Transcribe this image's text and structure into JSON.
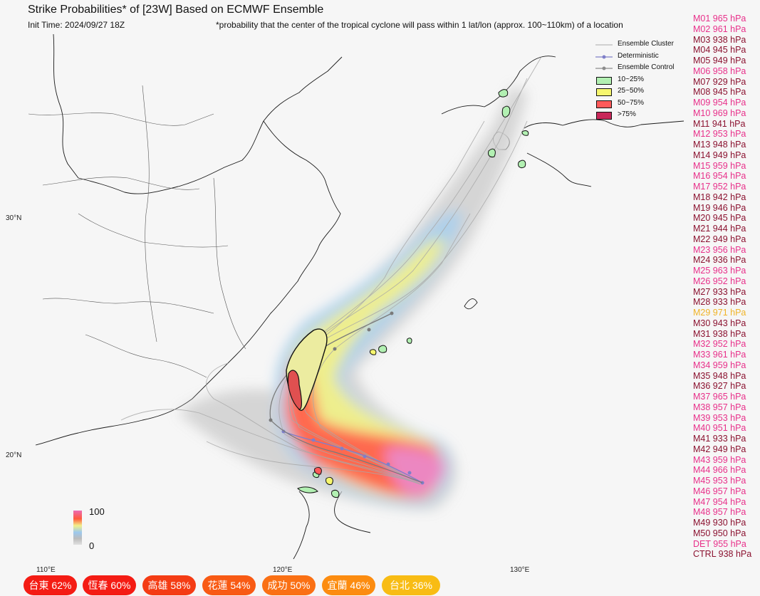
{
  "header": {
    "title": "Strike Probabilities* of [23W] Based on ECMWF Ensemble",
    "init_time": "Init Time: 2024/09/27 18Z",
    "footnote": "*probability that the center of the tropical cyclone will pass within 1 lat/lon (approx. 100~110km) of a location"
  },
  "axes": {
    "lat_labels": [
      "30°N",
      "20°N"
    ],
    "lon_labels": [
      "110°E",
      "120°E",
      "130°E"
    ]
  },
  "legend": {
    "items": [
      {
        "label": "Ensemble Cluster",
        "kind": "line",
        "color": "#b9b9b9"
      },
      {
        "label": "Deterministic",
        "kind": "dotline",
        "color": "#7f7fc8"
      },
      {
        "label": "Ensemble Control",
        "kind": "dotline",
        "color": "#8c8c8c"
      },
      {
        "label": "10~25%",
        "kind": "box",
        "color": "#b2f0b2"
      },
      {
        "label": "25~50%",
        "kind": "box",
        "color": "#f6f66e"
      },
      {
        "label": "50~75%",
        "kind": "box",
        "color": "#ff5a5a"
      },
      {
        "label": ">75%",
        "kind": "box",
        "color": "#c8285a"
      }
    ]
  },
  "colorbar": {
    "max": "100",
    "min": "0"
  },
  "members": [
    {
      "name": "M01 965 hPa",
      "color": "#e8308a"
    },
    {
      "name": "M02 961 hPa",
      "color": "#e8308a"
    },
    {
      "name": "M03 938 hPa",
      "color": "#8b1230"
    },
    {
      "name": "M04 945 hPa",
      "color": "#8b1230"
    },
    {
      "name": "M05 949 hPa",
      "color": "#8b1230"
    },
    {
      "name": "M06 958 hPa",
      "color": "#e8308a"
    },
    {
      "name": "M07 929 hPa",
      "color": "#8b1230"
    },
    {
      "name": "M08 945 hPa",
      "color": "#8b1230"
    },
    {
      "name": "M09 954 hPa",
      "color": "#e8308a"
    },
    {
      "name": "M10 969 hPa",
      "color": "#e8308a"
    },
    {
      "name": "M11 941 hPa",
      "color": "#8b1230"
    },
    {
      "name": "M12 953 hPa",
      "color": "#e8308a"
    },
    {
      "name": "M13 948 hPa",
      "color": "#8b1230"
    },
    {
      "name": "M14 949 hPa",
      "color": "#8b1230"
    },
    {
      "name": "M15 959 hPa",
      "color": "#e8308a"
    },
    {
      "name": "M16 954 hPa",
      "color": "#e8308a"
    },
    {
      "name": "M17 952 hPa",
      "color": "#e8308a"
    },
    {
      "name": "M18 942 hPa",
      "color": "#8b1230"
    },
    {
      "name": "M19 946 hPa",
      "color": "#8b1230"
    },
    {
      "name": "M20 945 hPa",
      "color": "#8b1230"
    },
    {
      "name": "M21 944 hPa",
      "color": "#8b1230"
    },
    {
      "name": "M22 949 hPa",
      "color": "#8b1230"
    },
    {
      "name": "M23 956 hPa",
      "color": "#e8308a"
    },
    {
      "name": "M24 936 hPa",
      "color": "#8b1230"
    },
    {
      "name": "M25 963 hPa",
      "color": "#e8308a"
    },
    {
      "name": "M26 952 hPa",
      "color": "#e8308a"
    },
    {
      "name": "M27 933 hPa",
      "color": "#8b1230"
    },
    {
      "name": "M28 933 hPa",
      "color": "#8b1230"
    },
    {
      "name": "M29 971 hPa",
      "color": "#f0b428"
    },
    {
      "name": "M30 943 hPa",
      "color": "#8b1230"
    },
    {
      "name": "M31 938 hPa",
      "color": "#8b1230"
    },
    {
      "name": "M32 952 hPa",
      "color": "#e8308a"
    },
    {
      "name": "M33 961 hPa",
      "color": "#e8308a"
    },
    {
      "name": "M34 959 hPa",
      "color": "#e8308a"
    },
    {
      "name": "M35 948 hPa",
      "color": "#8b1230"
    },
    {
      "name": "M36 927 hPa",
      "color": "#8b1230"
    },
    {
      "name": "M37 965 hPa",
      "color": "#e8308a"
    },
    {
      "name": "M38 957 hPa",
      "color": "#e8308a"
    },
    {
      "name": "M39 953 hPa",
      "color": "#e8308a"
    },
    {
      "name": "M40 951 hPa",
      "color": "#e8308a"
    },
    {
      "name": "M41 933 hPa",
      "color": "#8b1230"
    },
    {
      "name": "M42 949 hPa",
      "color": "#8b1230"
    },
    {
      "name": "M43 959 hPa",
      "color": "#e8308a"
    },
    {
      "name": "M44 966 hPa",
      "color": "#e8308a"
    },
    {
      "name": "M45 953 hPa",
      "color": "#e8308a"
    },
    {
      "name": "M46 957 hPa",
      "color": "#e8308a"
    },
    {
      "name": "M47 954 hPa",
      "color": "#e8308a"
    },
    {
      "name": "M48 957 hPa",
      "color": "#e8308a"
    },
    {
      "name": "M49 930 hPa",
      "color": "#8b1230"
    },
    {
      "name": "M50 950 hPa",
      "color": "#8b1230"
    },
    {
      "name": "DET 955 hPa",
      "color": "#e8308a"
    },
    {
      "name": "CTRL 938 hPa",
      "color": "#8b1230"
    }
  ],
  "cities": [
    {
      "label": "台東 62%",
      "color": "#f41c14"
    },
    {
      "label": "恆春 60%",
      "color": "#f41c14"
    },
    {
      "label": "高雄 58%",
      "color": "#f43c14"
    },
    {
      "label": "花蓮 54%",
      "color": "#f85a14"
    },
    {
      "label": "成功 50%",
      "color": "#fa7014"
    },
    {
      "label": "宜蘭 46%",
      "color": "#fc8c10"
    },
    {
      "label": "台北 36%",
      "color": "#f8bc14"
    }
  ]
}
